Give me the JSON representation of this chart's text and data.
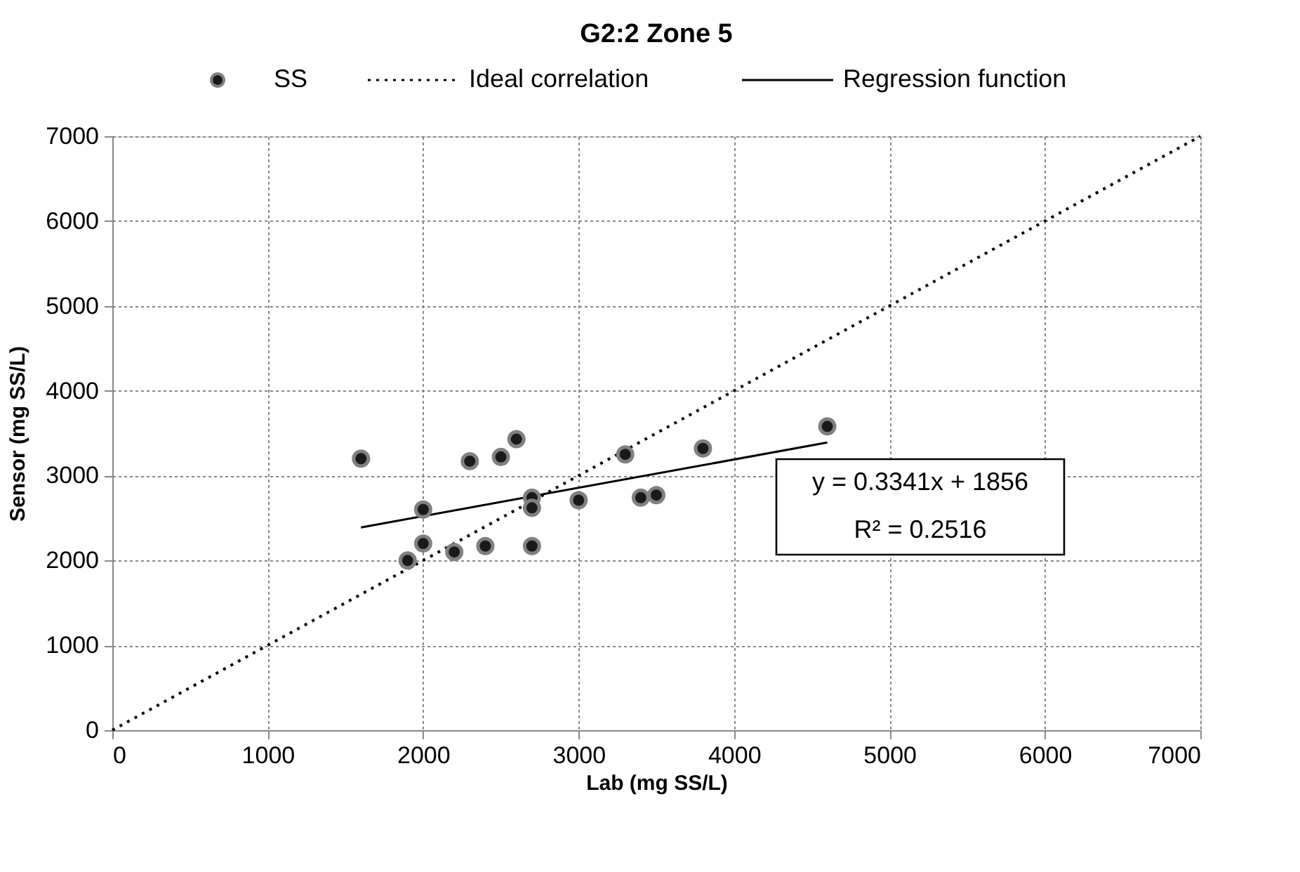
{
  "chart_data": {
    "type": "scatter",
    "title": "G2:2 Zone 5",
    "xlabel": "Lab  (mg SS/L)",
    "ylabel": "Sensor  (mg SS/L)",
    "xlim": [
      0,
      7000
    ],
    "ylim": [
      0,
      7000
    ],
    "xticks": [
      0,
      1000,
      2000,
      3000,
      4000,
      5000,
      6000,
      7000
    ],
    "yticks": [
      0,
      1000,
      2000,
      3000,
      4000,
      5000,
      6000,
      7000
    ],
    "grid": true,
    "legend": "top",
    "annotations": [
      "y = 0.3341x + 1856",
      "R² = 0.2516"
    ],
    "series": [
      {
        "name": "SS",
        "marker": "circle",
        "color": "#1a1a1a",
        "x": [
          1600,
          1900,
          2000,
          2000,
          2200,
          2300,
          2400,
          2500,
          2600,
          2700,
          2700,
          2700,
          3000,
          3300,
          3400,
          3500,
          3800,
          4600
        ],
        "values": [
          3200,
          2000,
          2600,
          2200,
          2100,
          3170,
          2170,
          3220,
          3430,
          2740,
          2620,
          2170,
          2710,
          3250,
          2740,
          2770,
          3320,
          3580
        ]
      },
      {
        "name": "Ideal correlation",
        "type": "line",
        "line_style": "dotted",
        "color": "#000000",
        "x": [
          0,
          7000
        ],
        "values": [
          0,
          7000
        ]
      },
      {
        "name": "Regression function",
        "type": "line",
        "line_style": "solid",
        "color": "#000000",
        "x": [
          1600,
          4600
        ],
        "values": [
          2390,
          3390
        ]
      }
    ]
  }
}
